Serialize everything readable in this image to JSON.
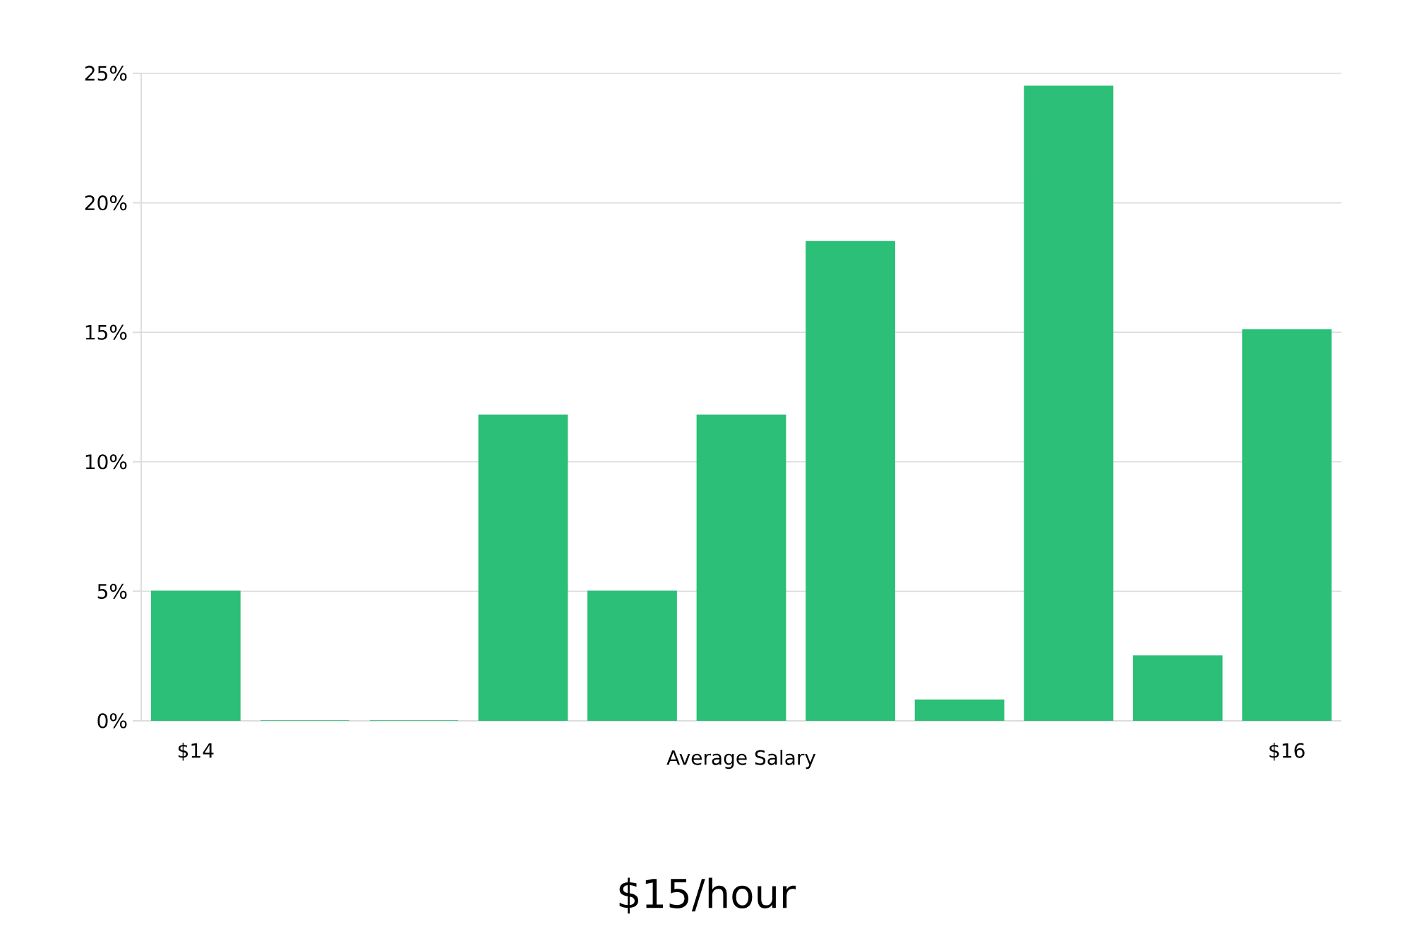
{
  "chart_data": {
    "type": "bar",
    "xlabel": "Average Salary",
    "annotations": [
      "$15/hour"
    ],
    "categories": [
      "$14",
      null,
      null,
      null,
      null,
      null,
      null,
      null,
      null,
      null,
      "$16"
    ],
    "values": [
      5.0,
      0,
      0,
      11.8,
      5.0,
      11.8,
      18.5,
      0.8,
      24.5,
      2.5,
      15.1
    ],
    "color": "#2bbf77",
    "ylim": [
      0,
      25
    ],
    "yticks": [
      {
        "value": 0,
        "label": "0%"
      },
      {
        "value": 5,
        "label": "5%"
      },
      {
        "value": 10,
        "label": "10%"
      },
      {
        "value": 15,
        "label": "15%"
      },
      {
        "value": 20,
        "label": "20%"
      },
      {
        "value": 25,
        "label": "25%"
      }
    ],
    "grid": "y"
  }
}
